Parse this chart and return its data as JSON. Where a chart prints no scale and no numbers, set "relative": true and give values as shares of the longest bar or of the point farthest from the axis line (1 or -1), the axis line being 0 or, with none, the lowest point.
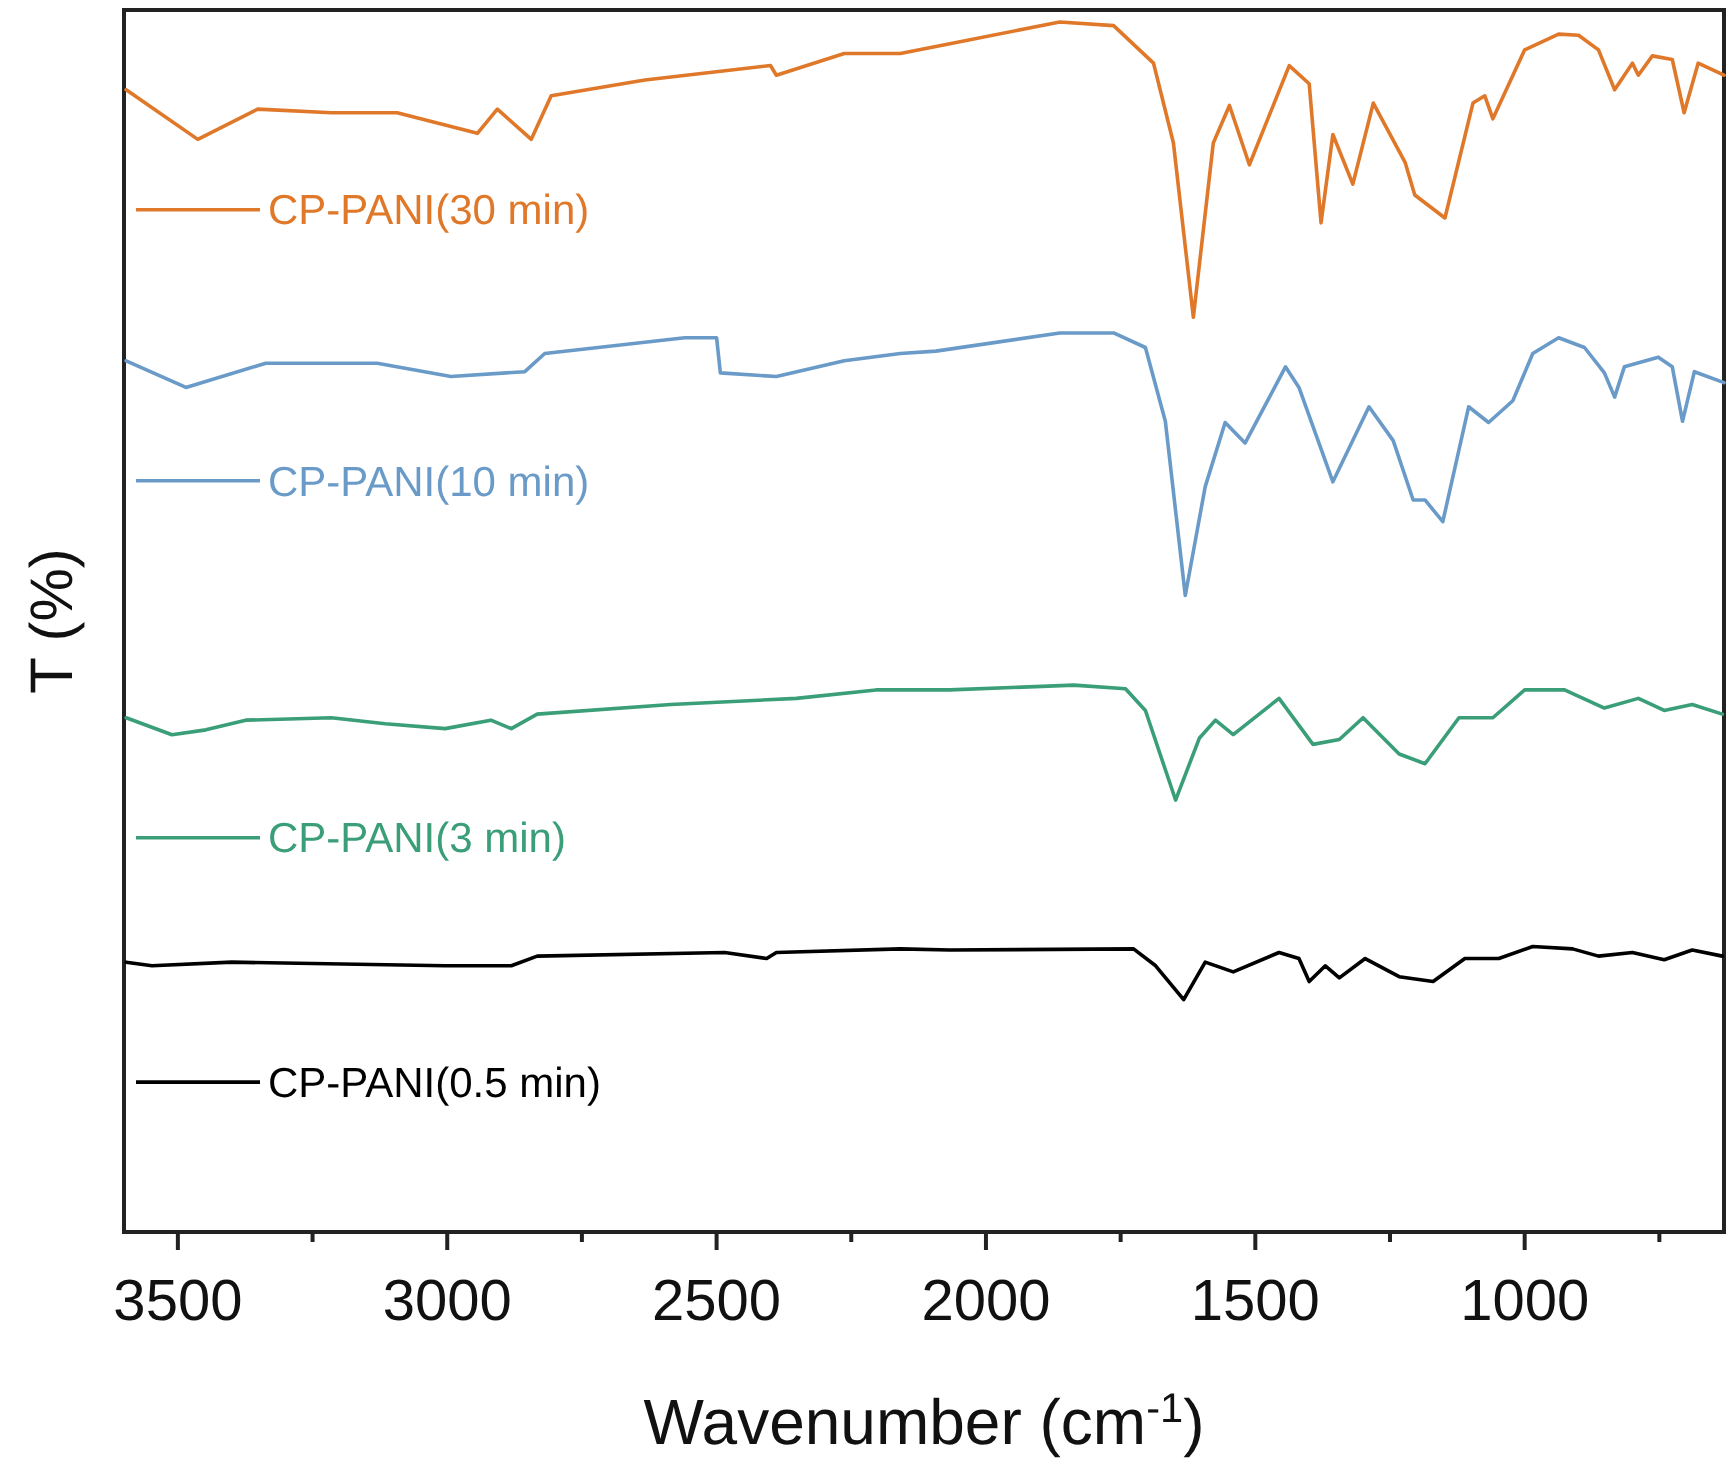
{
  "chart_data": {
    "type": "line",
    "relative": true,
    "xlabel": "Wavenumber (cm$^{-1}$)",
    "ylabel": "T (%)",
    "xlim": [
      3600,
      630
    ],
    "xticks": [
      3500,
      {
        "value": 3250,
        "label": null
      },
      3000,
      {
        "value": 2750,
        "label": null
      },
      2500,
      {
        "value": 2250,
        "label": null
      },
      2000,
      {
        "value": 1750,
        "label": null
      },
      1500,
      {
        "value": 1250,
        "label": null
      },
      1000,
      {
        "value": 750,
        "label": null
      }
    ],
    "line_style": "solid",
    "marker": "none",
    "grid": false,
    "legend": "left",
    "series": [
      {
        "name": "CP-PANI(30 min)",
        "color": "#e0782a",
        "x": [
          3596,
          3463,
          3352,
          3215,
          3093,
          2944,
          2907,
          2844,
          2807,
          2633,
          2400,
          2389,
          2263,
          2159,
          2067,
          1863,
          1763,
          1689,
          1652,
          1615,
          1578,
          1548,
          1511,
          1437,
          1400,
          1378,
          1356,
          1319,
          1281,
          1222,
          1204,
          1148,
          1096,
          1074,
          1059,
          1000,
          937,
          900,
          863,
          833,
          800,
          789,
          763,
          726,
          704,
          678,
          630
        ],
        "values": [
          0.944,
          0.903,
          0.928,
          0.925,
          0.925,
          0.908,
          0.928,
          0.903,
          0.939,
          0.952,
          0.964,
          0.956,
          0.974,
          0.974,
          0.982,
          1.0,
          0.997,
          0.966,
          0.9,
          0.756,
          0.9,
          0.931,
          0.882,
          0.964,
          0.949,
          0.834,
          0.907,
          0.866,
          0.933,
          0.884,
          0.857,
          0.838,
          0.933,
          0.939,
          0.92,
          0.977,
          0.99,
          0.989,
          0.977,
          0.944,
          0.966,
          0.956,
          0.972,
          0.969,
          0.925,
          0.966,
          0.956
        ]
      },
      {
        "name": "CP-PANI(10 min)",
        "color": "#6a9bc8",
        "x": [
          3596,
          3485,
          3337,
          3130,
          2993,
          2856,
          2819,
          2559,
          2500,
          2493,
          2389,
          2263,
          2159,
          2093,
          1863,
          1763,
          1704,
          1667,
          1630,
          1593,
          1556,
          1519,
          1444,
          1419,
          1356,
          1289,
          1244,
          1207,
          1185,
          1152,
          1104,
          1067,
          1022,
          985,
          937,
          889,
          852,
          833,
          815,
          752,
          726,
          707,
          685,
          630
        ],
        "values": [
          0.72,
          0.698,
          0.718,
          0.718,
          0.707,
          0.711,
          0.726,
          0.739,
          0.739,
          0.71,
          0.707,
          0.72,
          0.726,
          0.728,
          0.743,
          0.743,
          0.731,
          0.67,
          0.526,
          0.616,
          0.669,
          0.652,
          0.715,
          0.698,
          0.62,
          0.682,
          0.654,
          0.605,
          0.605,
          0.587,
          0.682,
          0.669,
          0.687,
          0.726,
          0.739,
          0.731,
          0.71,
          0.69,
          0.715,
          0.723,
          0.715,
          0.67,
          0.711,
          0.702
        ]
      },
      {
        "name": "CP-PANI(3 min)",
        "color": "#3a9e78",
        "x": [
          3596,
          3511,
          3448,
          3374,
          3215,
          3115,
          3004,
          2919,
          2881,
          2833,
          2585,
          2352,
          2204,
          2159,
          2067,
          1837,
          1741,
          1704,
          1648,
          1604,
          1574,
          1541,
          1456,
          1393,
          1344,
          1300,
          1233,
          1185,
          1122,
          1059,
          1000,
          926,
          852,
          789,
          741,
          689,
          633
        ],
        "values": [
          0.425,
          0.411,
          0.415,
          0.423,
          0.425,
          0.42,
          0.416,
          0.423,
          0.416,
          0.428,
          0.436,
          0.441,
          0.448,
          0.448,
          0.448,
          0.452,
          0.449,
          0.431,
          0.357,
          0.408,
          0.423,
          0.411,
          0.441,
          0.403,
          0.407,
          0.425,
          0.395,
          0.387,
          0.425,
          0.425,
          0.448,
          0.448,
          0.433,
          0.441,
          0.431,
          0.436,
          0.428
        ]
      },
      {
        "name": "CP-PANI(0.5 min)",
        "color": "#000000",
        "x": [
          3596,
          3548,
          3400,
          3004,
          2881,
          2833,
          2485,
          2407,
          2389,
          2159,
          2067,
          1726,
          1685,
          1633,
          1593,
          1541,
          1456,
          1419,
          1400,
          1370,
          1344,
          1296,
          1233,
          1170,
          1111,
          1048,
          985,
          911,
          863,
          800,
          741,
          689,
          633
        ],
        "values": [
          0.223,
          0.22,
          0.223,
          0.22,
          0.22,
          0.228,
          0.231,
          0.226,
          0.231,
          0.234,
          0.233,
          0.234,
          0.22,
          0.192,
          0.223,
          0.215,
          0.231,
          0.226,
          0.207,
          0.22,
          0.21,
          0.226,
          0.211,
          0.207,
          0.226,
          0.226,
          0.236,
          0.234,
          0.228,
          0.231,
          0.225,
          0.233,
          0.228
        ]
      }
    ]
  }
}
